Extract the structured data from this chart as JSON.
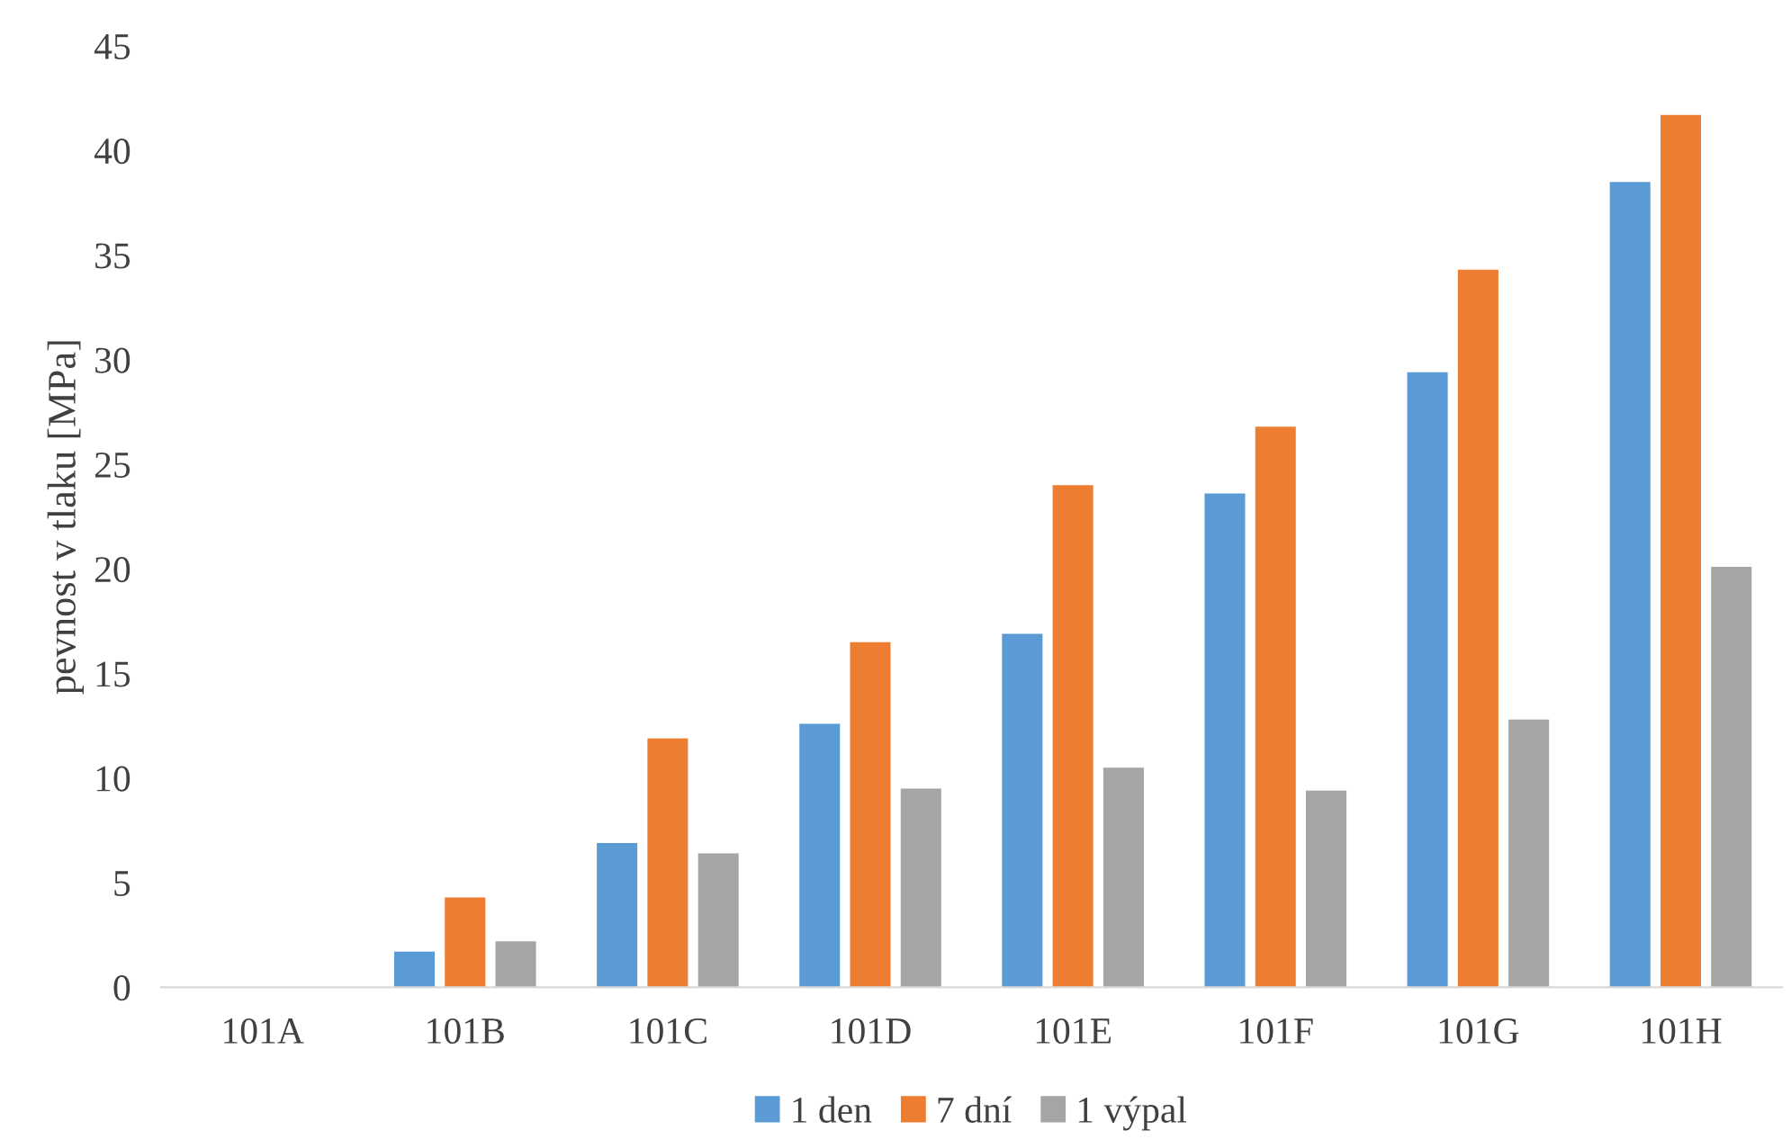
{
  "chart_data": {
    "type": "bar",
    "ylabel": "pevnost v tlaku [MPa]",
    "categories": [
      "101A",
      "101B",
      "101C",
      "101D",
      "101E",
      "101F",
      "101G",
      "101H"
    ],
    "series": [
      {
        "name": "1 den",
        "color": "#5b9bd5",
        "values": [
          0,
          1.7,
          6.9,
          12.6,
          16.9,
          23.6,
          29.4,
          38.5
        ]
      },
      {
        "name": "7 dní",
        "color": "#ed7d31",
        "values": [
          0,
          4.3,
          11.9,
          16.5,
          24.0,
          26.8,
          34.3,
          41.7
        ]
      },
      {
        "name": "1 výpal",
        "color": "#a5a5a5",
        "values": [
          0,
          2.2,
          6.4,
          9.5,
          10.5,
          9.4,
          12.8,
          20.1
        ]
      }
    ],
    "ylim": [
      0,
      45
    ],
    "yticks": [
      0,
      5,
      10,
      15,
      20,
      25,
      30,
      35,
      40,
      45
    ],
    "grid": false,
    "legend": "bottom"
  }
}
